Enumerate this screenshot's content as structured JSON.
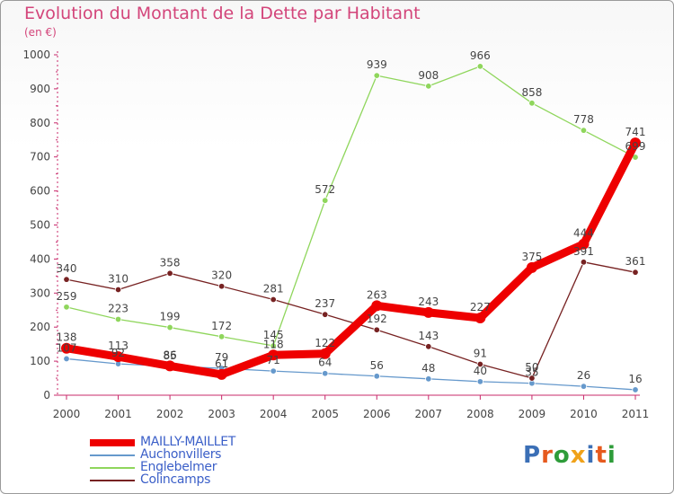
{
  "title": "Evolution du Montant de la Dette par Habitant",
  "unit_label": "(en €)",
  "logo_text": "Proxiti",
  "chart_data": {
    "type": "line",
    "categories": [
      "2000",
      "2001",
      "2002",
      "2003",
      "2004",
      "2005",
      "2006",
      "2007",
      "2008",
      "2009",
      "2010",
      "2011"
    ],
    "ylim": [
      0,
      1000
    ],
    "yticks": [
      "0",
      "100",
      "200",
      "300",
      "400",
      "500",
      "600",
      "700",
      "800",
      "900",
      "1000"
    ],
    "grid": false,
    "legend_position": "bottom-left",
    "series": [
      {
        "name": "MAILLY-MAILLET",
        "color": "#ee0000",
        "values": [
          138,
          113,
          86,
          61,
          118,
          122,
          263,
          243,
          227,
          375,
          444,
          741
        ],
        "labels": [
          "138",
          "113",
          "86",
          "61",
          "118",
          "122",
          "263",
          "243",
          "227",
          "375",
          "444",
          "741"
        ]
      },
      {
        "name": "Auchonvillers",
        "color": "#6699cc",
        "values": [
          107,
          92,
          85,
          79,
          71,
          64,
          56,
          48,
          40,
          35,
          26,
          16
        ],
        "labels": [
          "107",
          "92",
          "85",
          "79",
          "71",
          "64",
          "56",
          "48",
          "40",
          "35",
          "26",
          "16"
        ]
      },
      {
        "name": "Englebelmer",
        "color": "#8fd65c",
        "values": [
          259,
          223,
          199,
          172,
          145,
          572,
          939,
          908,
          966,
          858,
          778,
          699
        ],
        "labels": [
          "259",
          "223",
          "199",
          "172",
          "145",
          "572",
          "939",
          "908",
          "966",
          "858",
          "778",
          "699"
        ]
      },
      {
        "name": "Colincamps",
        "color": "#772222",
        "values": [
          340,
          310,
          358,
          320,
          281,
          237,
          192,
          143,
          91,
          50,
          391,
          361
        ],
        "labels": [
          "340",
          "310",
          "358",
          "320",
          "281",
          "237",
          "192",
          "143",
          "91",
          "50",
          "391",
          "361"
        ]
      }
    ]
  }
}
